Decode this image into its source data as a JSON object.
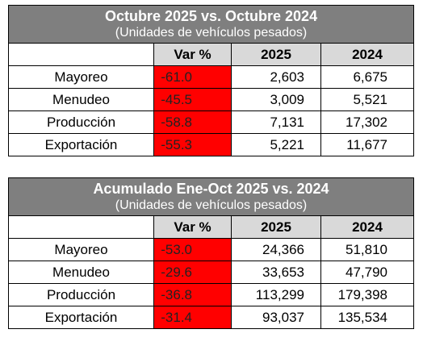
{
  "tables": [
    {
      "title": "Octubre 2025 vs. Octubre 2024",
      "subtitle": "(Unidades de vehículos pesados)",
      "columns": [
        "",
        "Var %",
        "2025",
        "2024"
      ],
      "rows": [
        {
          "label": "Mayoreo",
          "var": "-61.0",
          "y2025": "2,603",
          "y2024": "6,675"
        },
        {
          "label": "Menudeo",
          "var": "-45.5",
          "y2025": "3,009",
          "y2024": "5,521"
        },
        {
          "label": "Producción",
          "var": "-58.8",
          "y2025": "7,131",
          "y2024": "17,302"
        },
        {
          "label": "Exportación",
          "var": "-55.3",
          "y2025": "5,221",
          "y2024": "11,677"
        }
      ]
    },
    {
      "title": "Acumulado Ene-Oct 2025 vs. 2024",
      "subtitle": "(Unidades de vehículos pesados)",
      "columns": [
        "",
        "Var %",
        "2025",
        "2024"
      ],
      "rows": [
        {
          "label": "Mayoreo",
          "var": "-53.0",
          "y2025": "24,366",
          "y2024": "51,810"
        },
        {
          "label": "Menudeo",
          "var": "-29.6",
          "y2025": "33,653",
          "y2024": "47,790"
        },
        {
          "label": "Producción",
          "var": "-36.8",
          "y2025": "113,299",
          "y2024": "179,398"
        },
        {
          "label": "Exportación",
          "var": "-31.4",
          "y2025": "93,037",
          "y2024": "135,534"
        }
      ]
    }
  ],
  "colors": {
    "header_bg": "#7f7f7f",
    "column_header_bg": "#d9d9d9",
    "negative_var_bg": "#ff0000"
  }
}
